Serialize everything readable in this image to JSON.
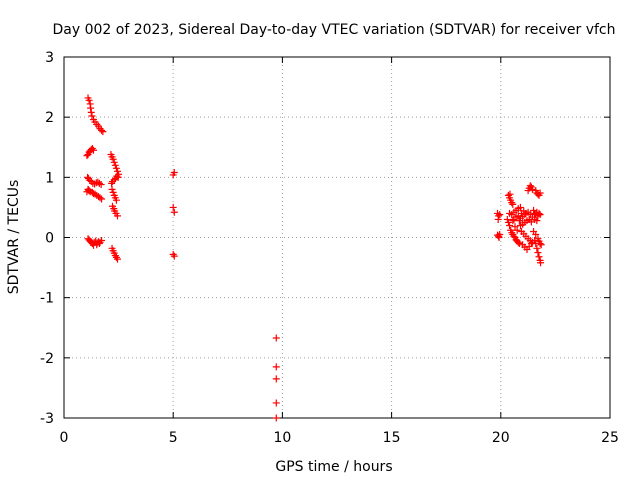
{
  "chart_data": {
    "type": "scatter",
    "title": "Day 002 of 2023, Sidereal Day-to-day VTEC variation (SDTVAR) for receiver vfch",
    "xlabel": "GPS time / hours",
    "ylabel": "SDTVAR / TECUs",
    "xlim": [
      0,
      25
    ],
    "ylim": [
      -3,
      3
    ],
    "xticks": [
      "0",
      "5",
      "10",
      "15",
      "20",
      "25"
    ],
    "yticks": [
      "3",
      "2",
      "1",
      "0",
      "-1",
      "-2",
      "-3"
    ],
    "grid": true,
    "marker": "+",
    "color": "#ff0000",
    "series": [
      {
        "name": "SDTVAR",
        "points": [
          [
            1.1,
            2.32
          ],
          [
            1.15,
            2.28
          ],
          [
            1.2,
            2.22
          ],
          [
            1.22,
            2.15
          ],
          [
            1.25,
            2.08
          ],
          [
            1.28,
            2.02
          ],
          [
            1.35,
            1.96
          ],
          [
            1.42,
            1.92
          ],
          [
            1.5,
            1.88
          ],
          [
            1.58,
            1.85
          ],
          [
            1.65,
            1.81
          ],
          [
            1.72,
            1.78
          ],
          [
            1.78,
            1.76
          ],
          [
            1.05,
            1.36
          ],
          [
            1.1,
            1.38
          ],
          [
            1.15,
            1.42
          ],
          [
            1.2,
            1.44
          ],
          [
            1.25,
            1.46
          ],
          [
            1.3,
            1.48
          ],
          [
            1.35,
            1.45
          ],
          [
            1.08,
            1.0
          ],
          [
            1.12,
            0.98
          ],
          [
            1.18,
            0.95
          ],
          [
            1.25,
            0.93
          ],
          [
            1.32,
            0.9
          ],
          [
            1.4,
            0.89
          ],
          [
            1.48,
            0.91
          ],
          [
            1.55,
            0.92
          ],
          [
            1.62,
            0.9
          ],
          [
            1.7,
            0.88
          ],
          [
            1.1,
            0.8
          ],
          [
            1.15,
            0.78
          ],
          [
            1.2,
            0.76
          ],
          [
            1.3,
            0.75
          ],
          [
            1.35,
            0.73
          ],
          [
            1.42,
            0.72
          ],
          [
            1.5,
            0.7
          ],
          [
            1.58,
            0.68
          ],
          [
            1.65,
            0.66
          ],
          [
            1.72,
            0.64
          ],
          [
            1.05,
            0.76
          ],
          [
            1.12,
            0.79
          ],
          [
            1.1,
            -0.02
          ],
          [
            1.15,
            -0.04
          ],
          [
            1.2,
            -0.06
          ],
          [
            1.25,
            -0.08
          ],
          [
            1.3,
            -0.1
          ],
          [
            1.38,
            -0.08
          ],
          [
            1.45,
            -0.06
          ],
          [
            1.52,
            -0.09
          ],
          [
            1.58,
            -0.07
          ],
          [
            1.65,
            -0.08
          ],
          [
            1.72,
            -0.05
          ],
          [
            1.5,
            -0.12
          ],
          [
            1.62,
            -0.1
          ],
          [
            1.35,
            -0.13
          ],
          [
            2.15,
            1.38
          ],
          [
            2.2,
            1.34
          ],
          [
            2.25,
            1.3
          ],
          [
            2.3,
            1.25
          ],
          [
            2.35,
            1.2
          ],
          [
            2.4,
            1.15
          ],
          [
            2.45,
            1.1
          ],
          [
            2.5,
            1.05
          ],
          [
            2.48,
            1.0
          ],
          [
            2.42,
            1.02
          ],
          [
            2.36,
            0.98
          ],
          [
            2.3,
            0.96
          ],
          [
            2.22,
            0.93
          ],
          [
            2.18,
            0.9
          ],
          [
            2.2,
            0.8
          ],
          [
            2.25,
            0.75
          ],
          [
            2.3,
            0.7
          ],
          [
            2.35,
            0.66
          ],
          [
            2.4,
            0.62
          ],
          [
            2.22,
            0.52
          ],
          [
            2.28,
            0.48
          ],
          [
            2.32,
            0.44
          ],
          [
            2.38,
            0.4
          ],
          [
            2.45,
            0.36
          ],
          [
            2.2,
            -0.18
          ],
          [
            2.25,
            -0.22
          ],
          [
            2.3,
            -0.26
          ],
          [
            2.35,
            -0.3
          ],
          [
            2.4,
            -0.33
          ],
          [
            2.45,
            -0.36
          ],
          [
            5.0,
            1.04
          ],
          [
            5.05,
            1.08
          ],
          [
            5.0,
            0.5
          ],
          [
            5.05,
            0.42
          ],
          [
            5.0,
            -0.28
          ],
          [
            5.05,
            -0.31
          ],
          [
            9.72,
            -1.67
          ],
          [
            9.72,
            -2.15
          ],
          [
            9.72,
            -2.35
          ],
          [
            9.72,
            -2.75
          ],
          [
            9.72,
            -3.0
          ],
          [
            19.85,
            0.4
          ],
          [
            19.9,
            0.36
          ],
          [
            19.88,
            0.3
          ],
          [
            19.95,
            0.38
          ],
          [
            19.85,
            0.04
          ],
          [
            19.9,
            0.02
          ],
          [
            19.95,
            0.05
          ],
          [
            19.92,
            0.0
          ],
          [
            20.35,
            0.7
          ],
          [
            20.4,
            0.66
          ],
          [
            20.45,
            0.62
          ],
          [
            20.5,
            0.58
          ],
          [
            20.55,
            0.55
          ],
          [
            20.42,
            0.72
          ],
          [
            20.3,
            0.3
          ],
          [
            20.35,
            0.25
          ],
          [
            20.4,
            0.2
          ],
          [
            20.45,
            0.12
          ],
          [
            20.5,
            0.08
          ],
          [
            20.55,
            0.05
          ],
          [
            20.6,
            0.02
          ],
          [
            20.65,
            0.0
          ],
          [
            20.7,
            -0.04
          ],
          [
            20.75,
            -0.06
          ],
          [
            20.8,
            -0.08
          ],
          [
            20.85,
            -0.1
          ],
          [
            20.4,
            0.4
          ],
          [
            20.5,
            0.38
          ],
          [
            20.6,
            0.42
          ],
          [
            20.7,
            0.45
          ],
          [
            20.8,
            0.48
          ],
          [
            20.9,
            0.5
          ],
          [
            20.6,
            0.3
          ],
          [
            20.7,
            0.34
          ],
          [
            20.8,
            0.36
          ],
          [
            20.9,
            0.32
          ],
          [
            21.0,
            0.35
          ],
          [
            21.1,
            0.38
          ],
          [
            20.9,
            0.2
          ],
          [
            21.0,
            0.22
          ],
          [
            21.1,
            0.25
          ],
          [
            21.2,
            0.28
          ],
          [
            21.3,
            0.3
          ],
          [
            21.4,
            0.26
          ],
          [
            20.95,
            0.1
          ],
          [
            21.05,
            0.06
          ],
          [
            21.15,
            0.02
          ],
          [
            21.25,
            -0.02
          ],
          [
            21.35,
            -0.05
          ],
          [
            21.45,
            -0.08
          ],
          [
            21.0,
            -0.12
          ],
          [
            21.1,
            -0.16
          ],
          [
            21.2,
            -0.2
          ],
          [
            21.3,
            -0.15
          ],
          [
            21.4,
            -0.1
          ],
          [
            21.3,
            0.82
          ],
          [
            21.35,
            0.86
          ],
          [
            21.4,
            0.84
          ],
          [
            21.45,
            0.8
          ],
          [
            21.25,
            0.78
          ],
          [
            21.5,
            0.45
          ],
          [
            21.55,
            0.4
          ],
          [
            21.6,
            0.38
          ],
          [
            21.65,
            0.42
          ],
          [
            21.7,
            0.36
          ],
          [
            21.75,
            0.4
          ],
          [
            21.8,
            0.38
          ],
          [
            21.6,
            0.78
          ],
          [
            21.65,
            0.74
          ],
          [
            21.7,
            0.72
          ],
          [
            21.75,
            0.7
          ],
          [
            21.8,
            0.74
          ],
          [
            21.55,
            -0.05
          ],
          [
            21.6,
            -0.1
          ],
          [
            21.65,
            -0.18
          ],
          [
            21.7,
            -0.25
          ],
          [
            21.75,
            -0.32
          ],
          [
            21.8,
            -0.38
          ],
          [
            21.82,
            -0.42
          ],
          [
            21.7,
            -0.02
          ],
          [
            21.75,
            -0.06
          ],
          [
            21.8,
            -0.1
          ],
          [
            21.85,
            -0.12
          ],
          [
            21.6,
            0.05
          ],
          [
            21.5,
            0.1
          ],
          [
            20.55,
            0.28
          ],
          [
            20.65,
            0.18
          ],
          [
            20.75,
            0.12
          ],
          [
            20.85,
            0.28
          ],
          [
            20.95,
            0.4
          ],
          [
            21.05,
            0.44
          ],
          [
            21.15,
            0.4
          ],
          [
            21.25,
            0.42
          ],
          [
            21.35,
            0.38
          ],
          [
            21.45,
            0.34
          ],
          [
            21.55,
            0.3
          ],
          [
            21.65,
            0.28
          ]
        ]
      }
    ]
  }
}
